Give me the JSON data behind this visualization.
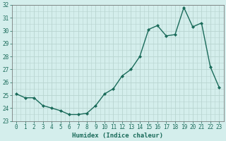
{
  "x": [
    0,
    1,
    2,
    3,
    4,
    5,
    6,
    7,
    8,
    9,
    10,
    11,
    12,
    13,
    14,
    15,
    16,
    17,
    18,
    19,
    20,
    21,
    22,
    23
  ],
  "y": [
    25.1,
    24.8,
    24.8,
    24.2,
    24.0,
    23.8,
    23.5,
    23.5,
    23.6,
    24.2,
    25.1,
    25.5,
    26.5,
    27.0,
    28.0,
    30.1,
    30.4,
    29.6,
    29.7,
    31.8,
    30.3,
    30.6,
    27.2,
    25.6
  ],
  "line_color": "#1a6b5a",
  "bg_color": "#d4eeec",
  "grid_color": "#b8d4d0",
  "xlabel": "Humidex (Indice chaleur)",
  "ylim": [
    23,
    32
  ],
  "xlim_min": -0.5,
  "xlim_max": 23.5,
  "yticks": [
    23,
    24,
    25,
    26,
    27,
    28,
    29,
    30,
    31,
    32
  ],
  "xticks": [
    0,
    1,
    2,
    3,
    4,
    5,
    6,
    7,
    8,
    9,
    10,
    11,
    12,
    13,
    14,
    15,
    16,
    17,
    18,
    19,
    20,
    21,
    22,
    23
  ],
  "marker": "D",
  "markersize": 2.0,
  "linewidth": 1.0,
  "tick_fontsize": 5.5,
  "xlabel_fontsize": 6.5
}
